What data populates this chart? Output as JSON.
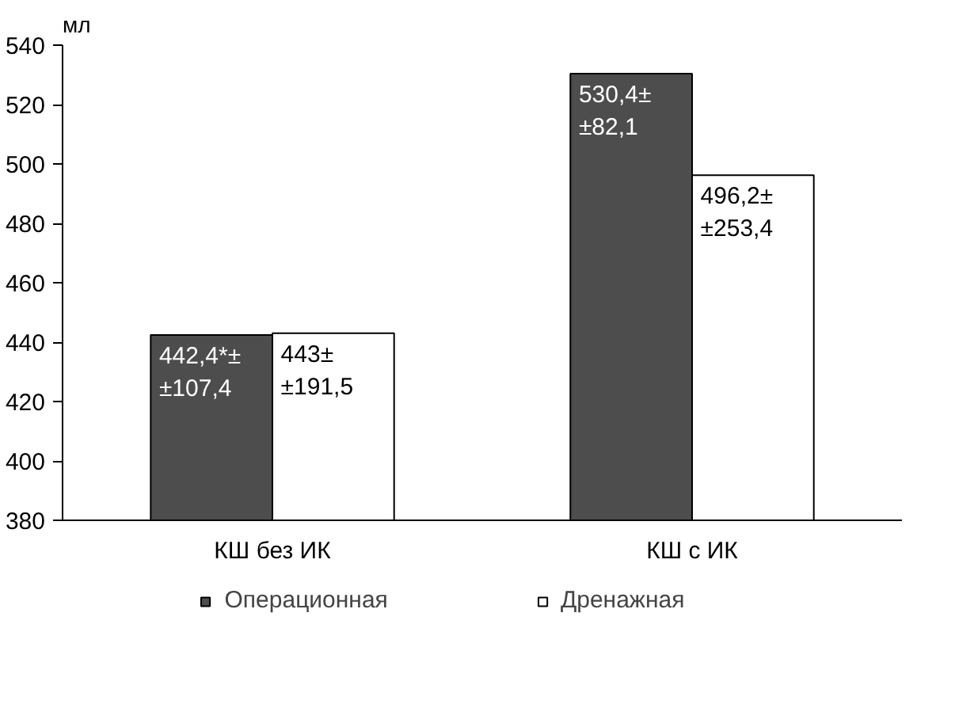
{
  "chart_data": {
    "type": "bar",
    "ylabel": "мл",
    "categories": [
      "КШ без ИК",
      "КШ с ИК"
    ],
    "series": [
      {
        "name": "Операционная",
        "color": "#4d4d4d",
        "values": [
          442.4,
          530.4
        ],
        "value_labels": [
          "442,4*±\n±107,4",
          "530,4±\n±82,1"
        ]
      },
      {
        "name": "Дренажная",
        "color": "#ffffff",
        "values": [
          443,
          496.2
        ],
        "value_labels": [
          "443±\n±191,5",
          "496,2±\n±253,4"
        ]
      }
    ],
    "ylim": [
      380,
      540
    ],
    "yticks": [
      380,
      400,
      420,
      440,
      460,
      480,
      500,
      520,
      540
    ],
    "grid": false,
    "legend": "bottom"
  }
}
